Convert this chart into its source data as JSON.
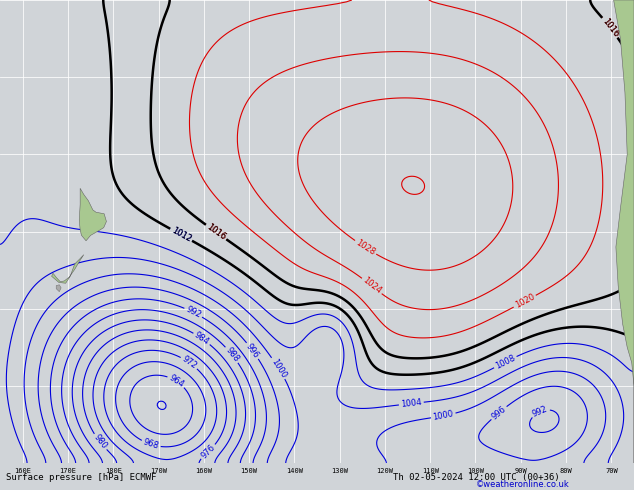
{
  "title_bottom": "Surface pressure [hPa] ECMWF",
  "title_right": "Th 02-05-2024 12:00 UTC (00+36)",
  "copyright": "©weatheronline.co.uk",
  "bg_color": "#d0d4d8",
  "map_bg": "#d0d4d8",
  "land_color_nz": "#a8c890",
  "land_color_sa": "#a8c890",
  "grid_color": "#ffffff",
  "figsize": [
    6.34,
    4.9
  ],
  "dpi": 100,
  "lon_min": 155,
  "lon_max": 295,
  "lat_min": -70,
  "lat_max": -10,
  "contour_color_blue": "#0000dd",
  "contour_color_black": "#000000",
  "contour_color_red": "#dd0000",
  "label_fontsize": 6.0,
  "bottom_bar_color": "#b8bcc0",
  "bottom_text_color": "#000000",
  "copyright_color": "#0000cc"
}
